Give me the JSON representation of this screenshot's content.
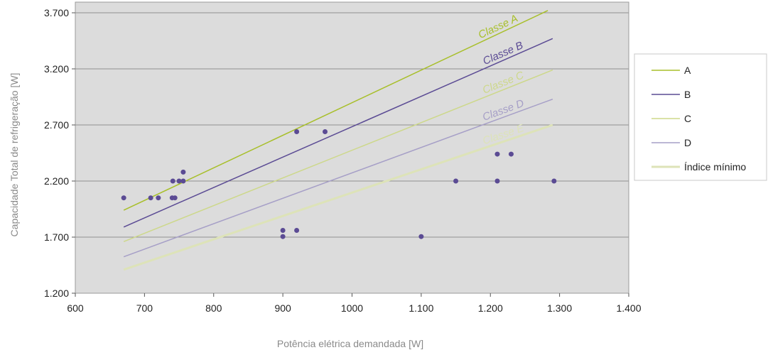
{
  "chart_data": {
    "type": "scatter",
    "title": "",
    "xlabel": "Potência elétrica demandada [W]",
    "ylabel": "Capacidade Total de refrigeração [W]",
    "xlim": [
      600,
      1400
    ],
    "ylim": [
      1200,
      3700
    ],
    "x_ticks": [
      600,
      700,
      800,
      900,
      1000,
      1100,
      1200,
      1300,
      1400
    ],
    "x_tick_labels": [
      "600",
      "700",
      "800",
      "900",
      "1000",
      "1.100",
      "1.200",
      "1.300",
      "1.400"
    ],
    "y_ticks": [
      1200,
      1700,
      2200,
      2700,
      3200,
      3700
    ],
    "y_tick_labels": [
      "1.200",
      "1.700",
      "2.200",
      "2.700",
      "3.200",
      "3.700"
    ],
    "grid": "horizontal",
    "legend_position": "right",
    "background_color": "#dcdcdc",
    "points": {
      "color": "#5b4b94",
      "values": [
        {
          "x": 670,
          "y": 2050
        },
        {
          "x": 709,
          "y": 2050
        },
        {
          "x": 720,
          "y": 2050
        },
        {
          "x": 740,
          "y": 2050
        },
        {
          "x": 744,
          "y": 2050
        },
        {
          "x": 741,
          "y": 2200
        },
        {
          "x": 750,
          "y": 2200
        },
        {
          "x": 756,
          "y": 2200
        },
        {
          "x": 756,
          "y": 2280
        },
        {
          "x": 920,
          "y": 2640
        },
        {
          "x": 961,
          "y": 2640
        },
        {
          "x": 900,
          "y": 1760
        },
        {
          "x": 920,
          "y": 1760
        },
        {
          "x": 900,
          "y": 1705
        },
        {
          "x": 1100,
          "y": 1705
        },
        {
          "x": 1150,
          "y": 2200
        },
        {
          "x": 1210,
          "y": 2200
        },
        {
          "x": 1292,
          "y": 2200
        },
        {
          "x": 1210,
          "y": 2440
        },
        {
          "x": 1230,
          "y": 2440
        }
      ]
    },
    "series": [
      {
        "name": "A",
        "label": "Classe A",
        "color": "#a8bf2a",
        "width": 1.5,
        "x": [
          670,
          1283
        ],
        "y": [
          1940,
          3720
        ]
      },
      {
        "name": "B",
        "label": "Classe B",
        "color": "#5b4b94",
        "width": 1.5,
        "x": [
          670,
          1290
        ],
        "y": [
          1790,
          3470
        ]
      },
      {
        "name": "C",
        "label": "Classe C",
        "color": "#cdd88a",
        "width": 1.5,
        "x": [
          670,
          1290
        ],
        "y": [
          1660,
          3190
        ]
      },
      {
        "name": "D",
        "label": "Classe D",
        "color": "#a69fc7",
        "width": 1.5,
        "x": [
          670,
          1290
        ],
        "y": [
          1525,
          2930
        ]
      },
      {
        "name": "Índice mínimo",
        "label": "Classe E",
        "color": "#dde3b8",
        "width": 3,
        "x": [
          670,
          1290
        ],
        "y": [
          1410,
          2700
        ]
      }
    ]
  }
}
